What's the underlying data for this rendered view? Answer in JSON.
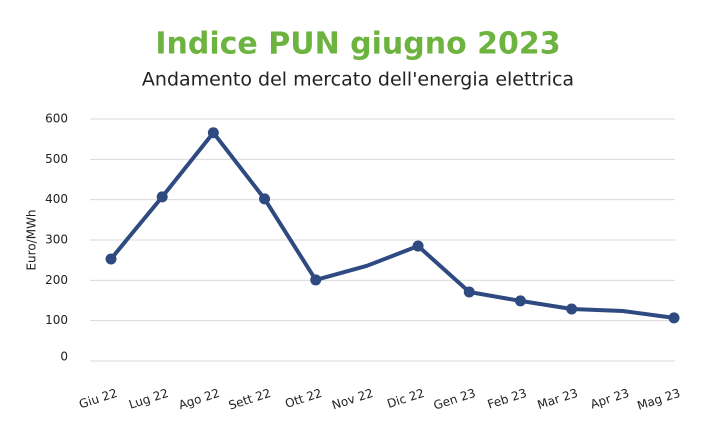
{
  "chart_data": {
    "type": "line",
    "title": "Indice PUN giugno 2023",
    "subtitle": "Andamento del mercato dell'energia elettrica",
    "y_label": "Euro/MWh",
    "categories": [
      "Giu 22",
      "Lug 22",
      "Ago 22",
      "Sett 22",
      "Ott 22",
      "Nov 22",
      "Dic 22",
      "Gen 23",
      "Feb 23",
      "Mar 23",
      "Apr 23",
      "Mag 23"
    ],
    "series": [
      {
        "name": "PUN",
        "color": "#2e4a80",
        "values": [
          253,
          407,
          566,
          402,
          201,
          236,
          285,
          171,
          149,
          129,
          124,
          107
        ],
        "markers": [
          true,
          true,
          true,
          true,
          true,
          false,
          true,
          true,
          true,
          true,
          false,
          true
        ]
      }
    ],
    "ylim": [
      0,
      600
    ],
    "yticks": [
      0,
      100,
      200,
      300,
      400,
      500,
      600
    ],
    "grid": true
  }
}
